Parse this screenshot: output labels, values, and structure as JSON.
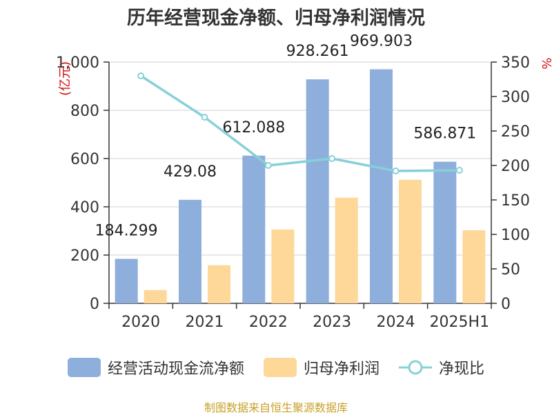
{
  "chart_data": {
    "type": "bar",
    "title": "历年经营现金净额、归母净利润情况",
    "categories": [
      "2020",
      "2021",
      "2022",
      "2023",
      "2024",
      "2025H1"
    ],
    "y_left": {
      "unit": "(亿元)",
      "ylim": [
        0,
        1000
      ],
      "ticks": [
        "0",
        "200",
        "400",
        "600",
        "800",
        "1,000"
      ]
    },
    "y_right": {
      "unit": "%",
      "ylim": [
        0,
        350
      ],
      "ticks": [
        "0",
        "50",
        "100",
        "150",
        "200",
        "250",
        "300",
        "350"
      ]
    },
    "series": [
      {
        "name": "经营活动现金流净额",
        "type": "bar",
        "axis": "left",
        "color": "#8eaedb",
        "values": [
          184.299,
          429.08,
          612.088,
          928.261,
          969.903,
          586.871
        ],
        "labels": [
          "184.299",
          "429.08",
          "612.088",
          "928.261",
          "969.903",
          "586.871"
        ]
      },
      {
        "name": "归母净利润",
        "type": "bar",
        "axis": "left",
        "color": "#fdd899",
        "values": [
          55,
          158,
          306,
          438,
          512,
          303
        ]
      },
      {
        "name": "净现比",
        "type": "line",
        "axis": "right",
        "color": "#86d0d8",
        "values": [
          330,
          270,
          200,
          210,
          192,
          193
        ]
      }
    ],
    "grid": true,
    "legend_position": "bottom"
  },
  "source_note": "制图数据来自恒生聚源数据库"
}
